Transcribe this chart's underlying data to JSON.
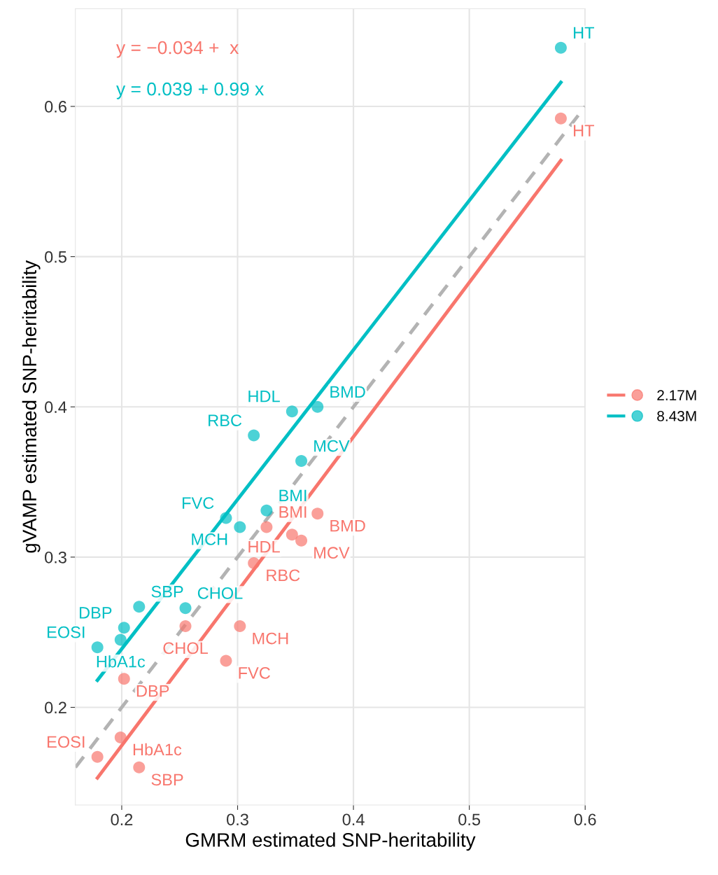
{
  "chart_data": {
    "type": "scatter",
    "xlabel": "GMRM estimated SNP-heritability",
    "ylabel": "gVAMP estimated SNP-heritability",
    "annotations": [
      "y = −0.034 +  x",
      "y = 0.039 + 0.99 x"
    ],
    "xlim": [
      0.16,
      0.6
    ],
    "ylim": [
      0.135,
      0.665
    ],
    "xticks": [
      0.2,
      0.3,
      0.4,
      0.5,
      0.6
    ],
    "yticks": [
      0.2,
      0.3,
      0.4,
      0.5,
      0.6
    ],
    "grid": true,
    "legend": "right",
    "marker": "circle",
    "series": [
      {
        "name": "2.17M",
        "color": "#f8766d",
        "x": [
          0.579,
          0.369,
          0.347,
          0.325,
          0.355,
          0.314,
          0.302,
          0.255,
          0.29,
          0.202,
          0.199,
          0.215,
          0.179
        ],
        "values": [
          0.592,
          0.329,
          0.315,
          0.32,
          0.311,
          0.296,
          0.254,
          0.254,
          0.231,
          0.219,
          0.18,
          0.16,
          0.167
        ],
        "value_labels": [
          "HT",
          "BMD",
          "HDL",
          "BMI",
          "MCV",
          "RBC",
          "MCH",
          "CHOL",
          "FVC",
          "DBP",
          "HbA1c",
          "SBP",
          "EOSI"
        ]
      },
      {
        "name": "8.43M",
        "color": "#00bfc4",
        "x": [
          0.579,
          0.347,
          0.369,
          0.314,
          0.355,
          0.325,
          0.29,
          0.302,
          0.255,
          0.215,
          0.202,
          0.199,
          0.179
        ],
        "values": [
          0.639,
          0.397,
          0.4,
          0.381,
          0.364,
          0.331,
          0.326,
          0.32,
          0.266,
          0.267,
          0.253,
          0.245,
          0.24
        ],
        "value_labels": [
          "HT",
          "HDL",
          "BMD",
          "RBC",
          "MCV",
          "BMI",
          "FVC",
          "MCH",
          "CHOL",
          "SBP",
          "DBP",
          "HbA1c",
          "EOSI"
        ]
      },
      {
        "type": "line",
        "color": "#f8766d",
        "x": [
          0.179,
          0.579
        ],
        "values": [
          0.153,
          0.564
        ],
        "line_style": "solid",
        "marker": "none"
      },
      {
        "type": "line",
        "color": "#00bfc4",
        "x": [
          0.179,
          0.579
        ],
        "values": [
          0.218,
          0.616
        ],
        "line_style": "solid",
        "marker": "none"
      },
      {
        "type": "line",
        "color": "#b3b3b3",
        "x": [
          0.16,
          0.6
        ],
        "values": [
          0.16,
          0.6
        ],
        "line_style": "dashed",
        "marker": "none"
      }
    ]
  }
}
